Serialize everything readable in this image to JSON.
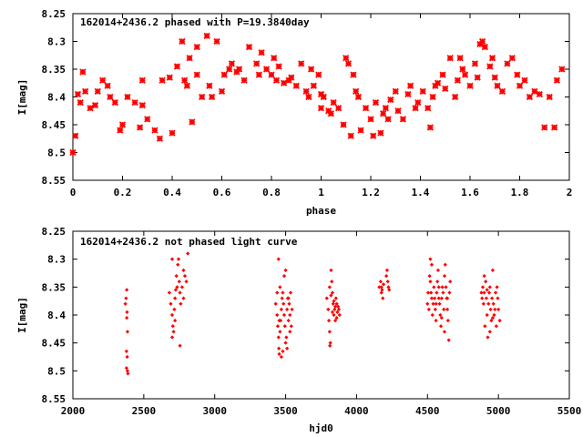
{
  "chart_data": [
    {
      "type": "scatter",
      "title": "162014+2436.2 phased with P=19.3840day",
      "xlabel": "phase",
      "ylabel": "I[mag]",
      "xlim": [
        0,
        2
      ],
      "ylim": [
        8.25,
        8.55
      ],
      "y_inverted": true,
      "xticks": [
        0,
        0.2,
        0.4,
        0.6,
        0.8,
        1,
        1.2,
        1.4,
        1.6,
        1.8,
        2
      ],
      "xtick_labels": [
        "0",
        "0.2",
        "0.4",
        "0.6",
        "0.8",
        "1",
        "1.2",
        "1.4",
        "1.6",
        "1.8",
        "2"
      ],
      "yticks": [
        8.25,
        8.3,
        8.35,
        8.4,
        8.45,
        8.5,
        8.55
      ],
      "ytick_labels": [
        "8.25",
        "8.3",
        "8.35",
        "8.4",
        "8.45",
        "8.5",
        "8.55"
      ],
      "grid": false,
      "marker": "cross",
      "color": "#ff0000",
      "points": [
        [
          0.0,
          8.5
        ],
        [
          0.01,
          8.47
        ],
        [
          0.02,
          8.395
        ],
        [
          0.03,
          8.41
        ],
        [
          0.04,
          8.355
        ],
        [
          0.05,
          8.39
        ],
        [
          0.07,
          8.42
        ],
        [
          0.09,
          8.415
        ],
        [
          0.12,
          8.37
        ],
        [
          0.14,
          8.38
        ],
        [
          0.15,
          8.4
        ],
        [
          0.17,
          8.41
        ],
        [
          0.19,
          8.46
        ],
        [
          0.22,
          8.4
        ],
        [
          0.25,
          8.41
        ],
        [
          0.27,
          8.455
        ],
        [
          0.28,
          8.415
        ],
        [
          0.3,
          8.44
        ],
        [
          0.33,
          8.46
        ],
        [
          0.35,
          8.475
        ],
        [
          0.36,
          8.37
        ],
        [
          0.39,
          8.365
        ],
        [
          0.4,
          8.465
        ],
        [
          0.42,
          8.345
        ],
        [
          0.45,
          8.37
        ],
        [
          0.46,
          8.38
        ],
        [
          0.47,
          8.33
        ],
        [
          0.48,
          8.445
        ],
        [
          0.5,
          8.36
        ],
        [
          0.52,
          8.4
        ],
        [
          0.54,
          8.29
        ],
        [
          0.55,
          8.38
        ],
        [
          0.56,
          8.4
        ],
        [
          0.58,
          8.3
        ],
        [
          0.6,
          8.39
        ],
        [
          0.61,
          8.36
        ],
        [
          0.63,
          8.35
        ],
        [
          0.66,
          8.355
        ],
        [
          0.67,
          8.35
        ],
        [
          0.69,
          8.37
        ],
        [
          0.71,
          8.31
        ],
        [
          0.74,
          8.34
        ],
        [
          0.76,
          8.32
        ],
        [
          0.78,
          8.35
        ],
        [
          0.8,
          8.36
        ],
        [
          0.81,
          8.33
        ],
        [
          0.83,
          8.345
        ],
        [
          0.85,
          8.375
        ],
        [
          0.87,
          8.37
        ],
        [
          0.88,
          8.365
        ],
        [
          0.9,
          8.38
        ],
        [
          0.92,
          8.34
        ],
        [
          0.94,
          8.39
        ],
        [
          0.96,
          8.35
        ],
        [
          0.97,
          8.38
        ],
        [
          0.99,
          8.36
        ],
        [
          1.0,
          8.395
        ],
        [
          1.01,
          8.4
        ],
        [
          1.03,
          8.425
        ],
        [
          1.04,
          8.43
        ],
        [
          1.05,
          8.41
        ],
        [
          1.07,
          8.42
        ],
        [
          1.09,
          8.45
        ],
        [
          1.1,
          8.33
        ],
        [
          1.11,
          8.34
        ],
        [
          1.13,
          8.36
        ],
        [
          1.14,
          8.39
        ],
        [
          1.15,
          8.4
        ],
        [
          1.16,
          8.46
        ],
        [
          1.18,
          8.42
        ],
        [
          1.2,
          8.44
        ],
        [
          1.21,
          8.47
        ],
        [
          1.22,
          8.41
        ],
        [
          1.24,
          8.465
        ],
        [
          1.25,
          8.43
        ],
        [
          1.27,
          8.44
        ],
        [
          1.28,
          8.405
        ],
        [
          1.3,
          8.39
        ],
        [
          1.31,
          8.425
        ],
        [
          1.33,
          8.44
        ],
        [
          1.35,
          8.395
        ],
        [
          1.36,
          8.38
        ],
        [
          1.38,
          8.42
        ],
        [
          1.39,
          8.41
        ],
        [
          1.41,
          8.39
        ],
        [
          1.43,
          8.42
        ],
        [
          1.44,
          8.455
        ],
        [
          1.45,
          8.4
        ],
        [
          1.47,
          8.375
        ],
        [
          1.49,
          8.36
        ],
        [
          1.5,
          8.385
        ],
        [
          1.52,
          8.33
        ],
        [
          1.54,
          8.4
        ],
        [
          1.55,
          8.37
        ],
        [
          1.57,
          8.35
        ],
        [
          1.58,
          8.36
        ],
        [
          1.6,
          8.38
        ],
        [
          1.62,
          8.34
        ],
        [
          1.63,
          8.365
        ],
        [
          1.65,
          8.3
        ],
        [
          1.66,
          8.31
        ],
        [
          1.68,
          8.345
        ],
        [
          1.7,
          8.365
        ],
        [
          1.71,
          8.38
        ],
        [
          1.73,
          8.39
        ],
        [
          1.75,
          8.34
        ],
        [
          1.77,
          8.33
        ],
        [
          1.79,
          8.36
        ],
        [
          1.8,
          8.38
        ],
        [
          1.82,
          8.37
        ],
        [
          1.84,
          8.4
        ],
        [
          1.86,
          8.39
        ],
        [
          1.88,
          8.395
        ],
        [
          1.9,
          8.455
        ],
        [
          1.92,
          8.4
        ],
        [
          1.94,
          8.455
        ],
        [
          1.95,
          8.37
        ],
        [
          1.97,
          8.35
        ],
        [
          0.44,
          8.3
        ],
        [
          0.5,
          8.31
        ],
        [
          0.28,
          8.37
        ],
        [
          0.2,
          8.45
        ],
        [
          0.1,
          8.39
        ],
        [
          0.95,
          8.4
        ],
        [
          1.0,
          8.42
        ],
        [
          1.12,
          8.47
        ],
        [
          1.26,
          8.42
        ],
        [
          1.46,
          8.38
        ],
        [
          1.56,
          8.33
        ],
        [
          1.64,
          8.305
        ],
        [
          1.69,
          8.33
        ],
        [
          0.64,
          8.34
        ],
        [
          0.75,
          8.36
        ],
        [
          0.82,
          8.37
        ]
      ]
    },
    {
      "type": "scatter",
      "title": "162014+2436.2 not phased light curve",
      "xlabel": "hjd0",
      "ylabel": "I[mag]",
      "xlim": [
        2000,
        5500
      ],
      "ylim": [
        8.25,
        8.55
      ],
      "y_inverted": true,
      "xticks": [
        2000,
        2500,
        3000,
        3500,
        4000,
        4500,
        5000,
        5500
      ],
      "xtick_labels": [
        "2000",
        "2500",
        "3000",
        "3500",
        "4000",
        "4500",
        "5000",
        "5500"
      ],
      "yticks": [
        8.25,
        8.3,
        8.35,
        8.4,
        8.45,
        8.5,
        8.55
      ],
      "ytick_labels": [
        "8.25",
        "8.3",
        "8.35",
        "8.4",
        "8.45",
        "8.5",
        "8.55"
      ],
      "grid": false,
      "marker": "dot",
      "color": "#ff0000",
      "points": [
        [
          2370,
          8.38
        ],
        [
          2375,
          8.37
        ],
        [
          2380,
          8.355
        ],
        [
          2382,
          8.395
        ],
        [
          2385,
          8.43
        ],
        [
          2378,
          8.465
        ],
        [
          2383,
          8.475
        ],
        [
          2385,
          8.5
        ],
        [
          2378,
          8.495
        ],
        [
          2388,
          8.505
        ],
        [
          2380,
          8.405
        ],
        [
          2680,
          8.36
        ],
        [
          2690,
          8.38
        ],
        [
          2700,
          8.4
        ],
        [
          2705,
          8.42
        ],
        [
          2700,
          8.44
        ],
        [
          2710,
          8.43
        ],
        [
          2715,
          8.39
        ],
        [
          2720,
          8.37
        ],
        [
          2725,
          8.355
        ],
        [
          2730,
          8.33
        ],
        [
          2740,
          8.31
        ],
        [
          2745,
          8.3
        ],
        [
          2750,
          8.34
        ],
        [
          2755,
          8.36
        ],
        [
          2760,
          8.38
        ],
        [
          2770,
          8.35
        ],
        [
          2780,
          8.32
        ],
        [
          2790,
          8.33
        ],
        [
          2800,
          8.34
        ],
        [
          2810,
          8.29
        ],
        [
          2700,
          8.3
        ],
        [
          2720,
          8.41
        ],
        [
          2735,
          8.35
        ],
        [
          2755,
          8.455
        ],
        [
          2780,
          8.37
        ],
        [
          3430,
          8.38
        ],
        [
          3440,
          8.4
        ],
        [
          3445,
          8.42
        ],
        [
          3450,
          8.44
        ],
        [
          3452,
          8.46
        ],
        [
          3455,
          8.47
        ],
        [
          3460,
          8.43
        ],
        [
          3465,
          8.41
        ],
        [
          3470,
          8.39
        ],
        [
          3475,
          8.37
        ],
        [
          3480,
          8.36
        ],
        [
          3485,
          8.38
        ],
        [
          3490,
          8.4
        ],
        [
          3495,
          8.42
        ],
        [
          3500,
          8.45
        ],
        [
          3505,
          8.44
        ],
        [
          3510,
          8.39
        ],
        [
          3515,
          8.37
        ],
        [
          3520,
          8.41
        ],
        [
          3525,
          8.38
        ],
        [
          3530,
          8.4
        ],
        [
          3535,
          8.36
        ],
        [
          3540,
          8.42
        ],
        [
          3545,
          8.39
        ],
        [
          3450,
          8.3
        ],
        [
          3460,
          8.35
        ],
        [
          3470,
          8.475
        ],
        [
          3480,
          8.465
        ],
        [
          3490,
          8.33
        ],
        [
          3500,
          8.32
        ],
        [
          3510,
          8.46
        ],
        [
          3440,
          8.36
        ],
        [
          3455,
          8.41
        ],
        [
          3520,
          8.37
        ],
        [
          3530,
          8.43
        ],
        [
          3790,
          8.37
        ],
        [
          3800,
          8.39
        ],
        [
          3805,
          8.41
        ],
        [
          3810,
          8.43
        ],
        [
          3812,
          8.455
        ],
        [
          3815,
          8.45
        ],
        [
          3820,
          8.32
        ],
        [
          3825,
          8.34
        ],
        [
          3830,
          8.36
        ],
        [
          3835,
          8.38
        ],
        [
          3840,
          8.4
        ],
        [
          3845,
          8.39
        ],
        [
          3850,
          8.41
        ],
        [
          3855,
          8.37
        ],
        [
          3860,
          8.38
        ],
        [
          3865,
          8.395
        ],
        [
          3870,
          8.385
        ],
        [
          3875,
          8.39
        ],
        [
          3880,
          8.4
        ],
        [
          3810,
          8.35
        ],
        [
          3820,
          8.365
        ],
        [
          3830,
          8.395
        ],
        [
          3840,
          8.375
        ],
        [
          3850,
          8.385
        ],
        [
          3860,
          8.405
        ],
        [
          4160,
          8.35
        ],
        [
          4170,
          8.34
        ],
        [
          4175,
          8.36
        ],
        [
          4180,
          8.355
        ],
        [
          4185,
          8.37
        ],
        [
          4190,
          8.345
        ],
        [
          4210,
          8.33
        ],
        [
          4215,
          8.32
        ],
        [
          4220,
          8.34
        ],
        [
          4225,
          8.35
        ],
        [
          4230,
          8.355
        ],
        [
          4175,
          8.35
        ],
        [
          4500,
          8.38
        ],
        [
          4505,
          8.36
        ],
        [
          4510,
          8.39
        ],
        [
          4515,
          8.33
        ],
        [
          4520,
          8.34
        ],
        [
          4525,
          8.36
        ],
        [
          4530,
          8.37
        ],
        [
          4535,
          8.4
        ],
        [
          4540,
          8.38
        ],
        [
          4545,
          8.35
        ],
        [
          4550,
          8.37
        ],
        [
          4555,
          8.39
        ],
        [
          4560,
          8.41
        ],
        [
          4565,
          8.36
        ],
        [
          4570,
          8.34
        ],
        [
          4575,
          8.32
        ],
        [
          4580,
          8.35
        ],
        [
          4585,
          8.38
        ],
        [
          4590,
          8.4
        ],
        [
          4595,
          8.42
        ],
        [
          4600,
          8.37
        ],
        [
          4605,
          8.35
        ],
        [
          4610,
          8.36
        ],
        [
          4615,
          8.39
        ],
        [
          4620,
          8.33
        ],
        [
          4625,
          8.31
        ],
        [
          4630,
          8.35
        ],
        [
          4635,
          8.37
        ],
        [
          4640,
          8.39
        ],
        [
          4645,
          8.41
        ],
        [
          4650,
          8.445
        ],
        [
          4655,
          8.36
        ],
        [
          4660,
          8.34
        ],
        [
          4520,
          8.3
        ],
        [
          4530,
          8.31
        ],
        [
          4580,
          8.37
        ],
        [
          4600,
          8.405
        ],
        [
          4620,
          8.43
        ],
        [
          4640,
          8.37
        ],
        [
          4560,
          8.38
        ],
        [
          4880,
          8.36
        ],
        [
          4885,
          8.37
        ],
        [
          4890,
          8.35
        ],
        [
          4895,
          8.38
        ],
        [
          4900,
          8.36
        ],
        [
          4905,
          8.42
        ],
        [
          4910,
          8.34
        ],
        [
          4915,
          8.37
        ],
        [
          4920,
          8.4
        ],
        [
          4925,
          8.44
        ],
        [
          4930,
          8.38
        ],
        [
          4935,
          8.36
        ],
        [
          4940,
          8.35
        ],
        [
          4945,
          8.39
        ],
        [
          4950,
          8.41
        ],
        [
          4955,
          8.37
        ],
        [
          4960,
          8.32
        ],
        [
          4965,
          8.38
        ],
        [
          4970,
          8.4
        ],
        [
          4975,
          8.39
        ],
        [
          4980,
          8.36
        ],
        [
          4985,
          8.42
        ],
        [
          4990,
          8.35
        ],
        [
          4995,
          8.37
        ],
        [
          5000,
          8.39
        ],
        [
          5010,
          8.41
        ],
        [
          4900,
          8.33
        ],
        [
          4920,
          8.355
        ],
        [
          4940,
          8.43
        ],
        [
          4960,
          8.405
        ]
      ]
    }
  ]
}
